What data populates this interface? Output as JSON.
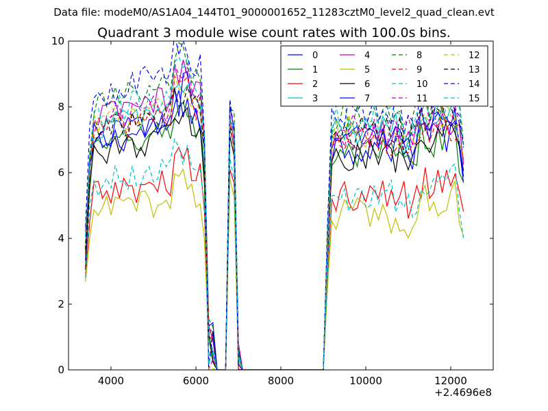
{
  "figure": {
    "suptitle": "Data file: modeM0/AS1A04_144T01_9000001652_11283cztM0_level2_quad_clean.evt"
  },
  "chart_data": {
    "type": "line",
    "title": "Quadrant 3 module wise count rates with 100.0s bins.",
    "xlabel": "",
    "ylabel": "",
    "xlim": [
      3000,
      13000
    ],
    "ylim": [
      0,
      10
    ],
    "x_offset_label": "+2.4696e8",
    "x_ticks": [
      4000,
      6000,
      8000,
      10000,
      12000
    ],
    "y_ticks": [
      0,
      2,
      4,
      6,
      8,
      10
    ],
    "grid": false,
    "legend": {
      "placement": "top-right",
      "columns": 4
    },
    "x": {
      "segment1": [
        3400,
        3500,
        3600,
        3700,
        3800,
        3900,
        4000,
        4100,
        4200,
        4300,
        4400,
        4500,
        4600,
        4700,
        4800,
        4900,
        5000,
        5100,
        5200,
        5300,
        5400,
        5500,
        5600,
        5700,
        5800,
        5900,
        6000,
        6100,
        6200,
        6300,
        6400
      ],
      "flare": [
        6700,
        6800,
        6900,
        7000,
        7100
      ],
      "segment2": [
        9100,
        9200,
        9300,
        9400,
        9500,
        9600,
        9700,
        9800,
        9900,
        10000,
        10100,
        10200,
        10300,
        10400,
        10500,
        10600,
        10700,
        10800,
        10900,
        11000,
        11100,
        11200,
        11300,
        11400,
        11500,
        11600,
        11700,
        11800,
        11900,
        12000,
        12100,
        12200,
        12300
      ]
    },
    "series": [
      {
        "name": "0",
        "color": "#0000ff",
        "dash": "solid",
        "level1": 7.0,
        "level2": 6.8,
        "peak": 9.5
      },
      {
        "name": "1",
        "color": "#008000",
        "dash": "solid",
        "level1": 6.8,
        "level2": 6.5,
        "peak": 8.6
      },
      {
        "name": "2",
        "color": "#ff0000",
        "dash": "solid",
        "level1": 5.4,
        "level2": 5.3,
        "peak": 7.0
      },
      {
        "name": "3",
        "color": "#00bfbf",
        "dash": "solid",
        "level1": 7.5,
        "level2": 7.3,
        "peak": 9.0
      },
      {
        "name": "4",
        "color": "#bf00bf",
        "dash": "solid",
        "level1": 7.8,
        "level2": 7.2,
        "peak": 9.2
      },
      {
        "name": "5",
        "color": "#bfbf00",
        "dash": "solid",
        "level1": 4.9,
        "level2": 4.7,
        "peak": 6.8
      },
      {
        "name": "6",
        "color": "#000000",
        "dash": "solid",
        "level1": 6.7,
        "level2": 6.4,
        "peak": 8.2
      },
      {
        "name": "7",
        "color": "#0000ff",
        "dash": "solid",
        "level1": 7.2,
        "level2": 7.0,
        "peak": 9.0
      },
      {
        "name": "8",
        "color": "#008000",
        "dash": "dashed",
        "level1": 8.2,
        "level2": 7.7,
        "peak": 9.4
      },
      {
        "name": "9",
        "color": "#ff0000",
        "dash": "dashed",
        "level1": 7.4,
        "level2": 6.9,
        "peak": 8.8
      },
      {
        "name": "10",
        "color": "#00bfbf",
        "dash": "dashed",
        "level1": 5.8,
        "level2": 5.3,
        "peak": 7.4
      },
      {
        "name": "11",
        "color": "#bf00bf",
        "dash": "dashed",
        "level1": 7.6,
        "level2": 7.3,
        "peak": 9.1
      },
      {
        "name": "12",
        "color": "#bfbf00",
        "dash": "dashed",
        "level1": 7.5,
        "level2": 7.2,
        "peak": 8.9
      },
      {
        "name": "13",
        "color": "#000000",
        "dash": "dashed",
        "level1": 7.3,
        "level2": 7.2,
        "peak": 8.6
      },
      {
        "name": "14",
        "color": "#0000ff",
        "dash": "dashed",
        "level1": 8.5,
        "level2": 7.9,
        "peak": 9.5
      },
      {
        "name": "15",
        "color": "#00bfbf",
        "dash": "dashed",
        "level1": 7.9,
        "level2": 7.6,
        "peak": 9.2
      }
    ]
  }
}
